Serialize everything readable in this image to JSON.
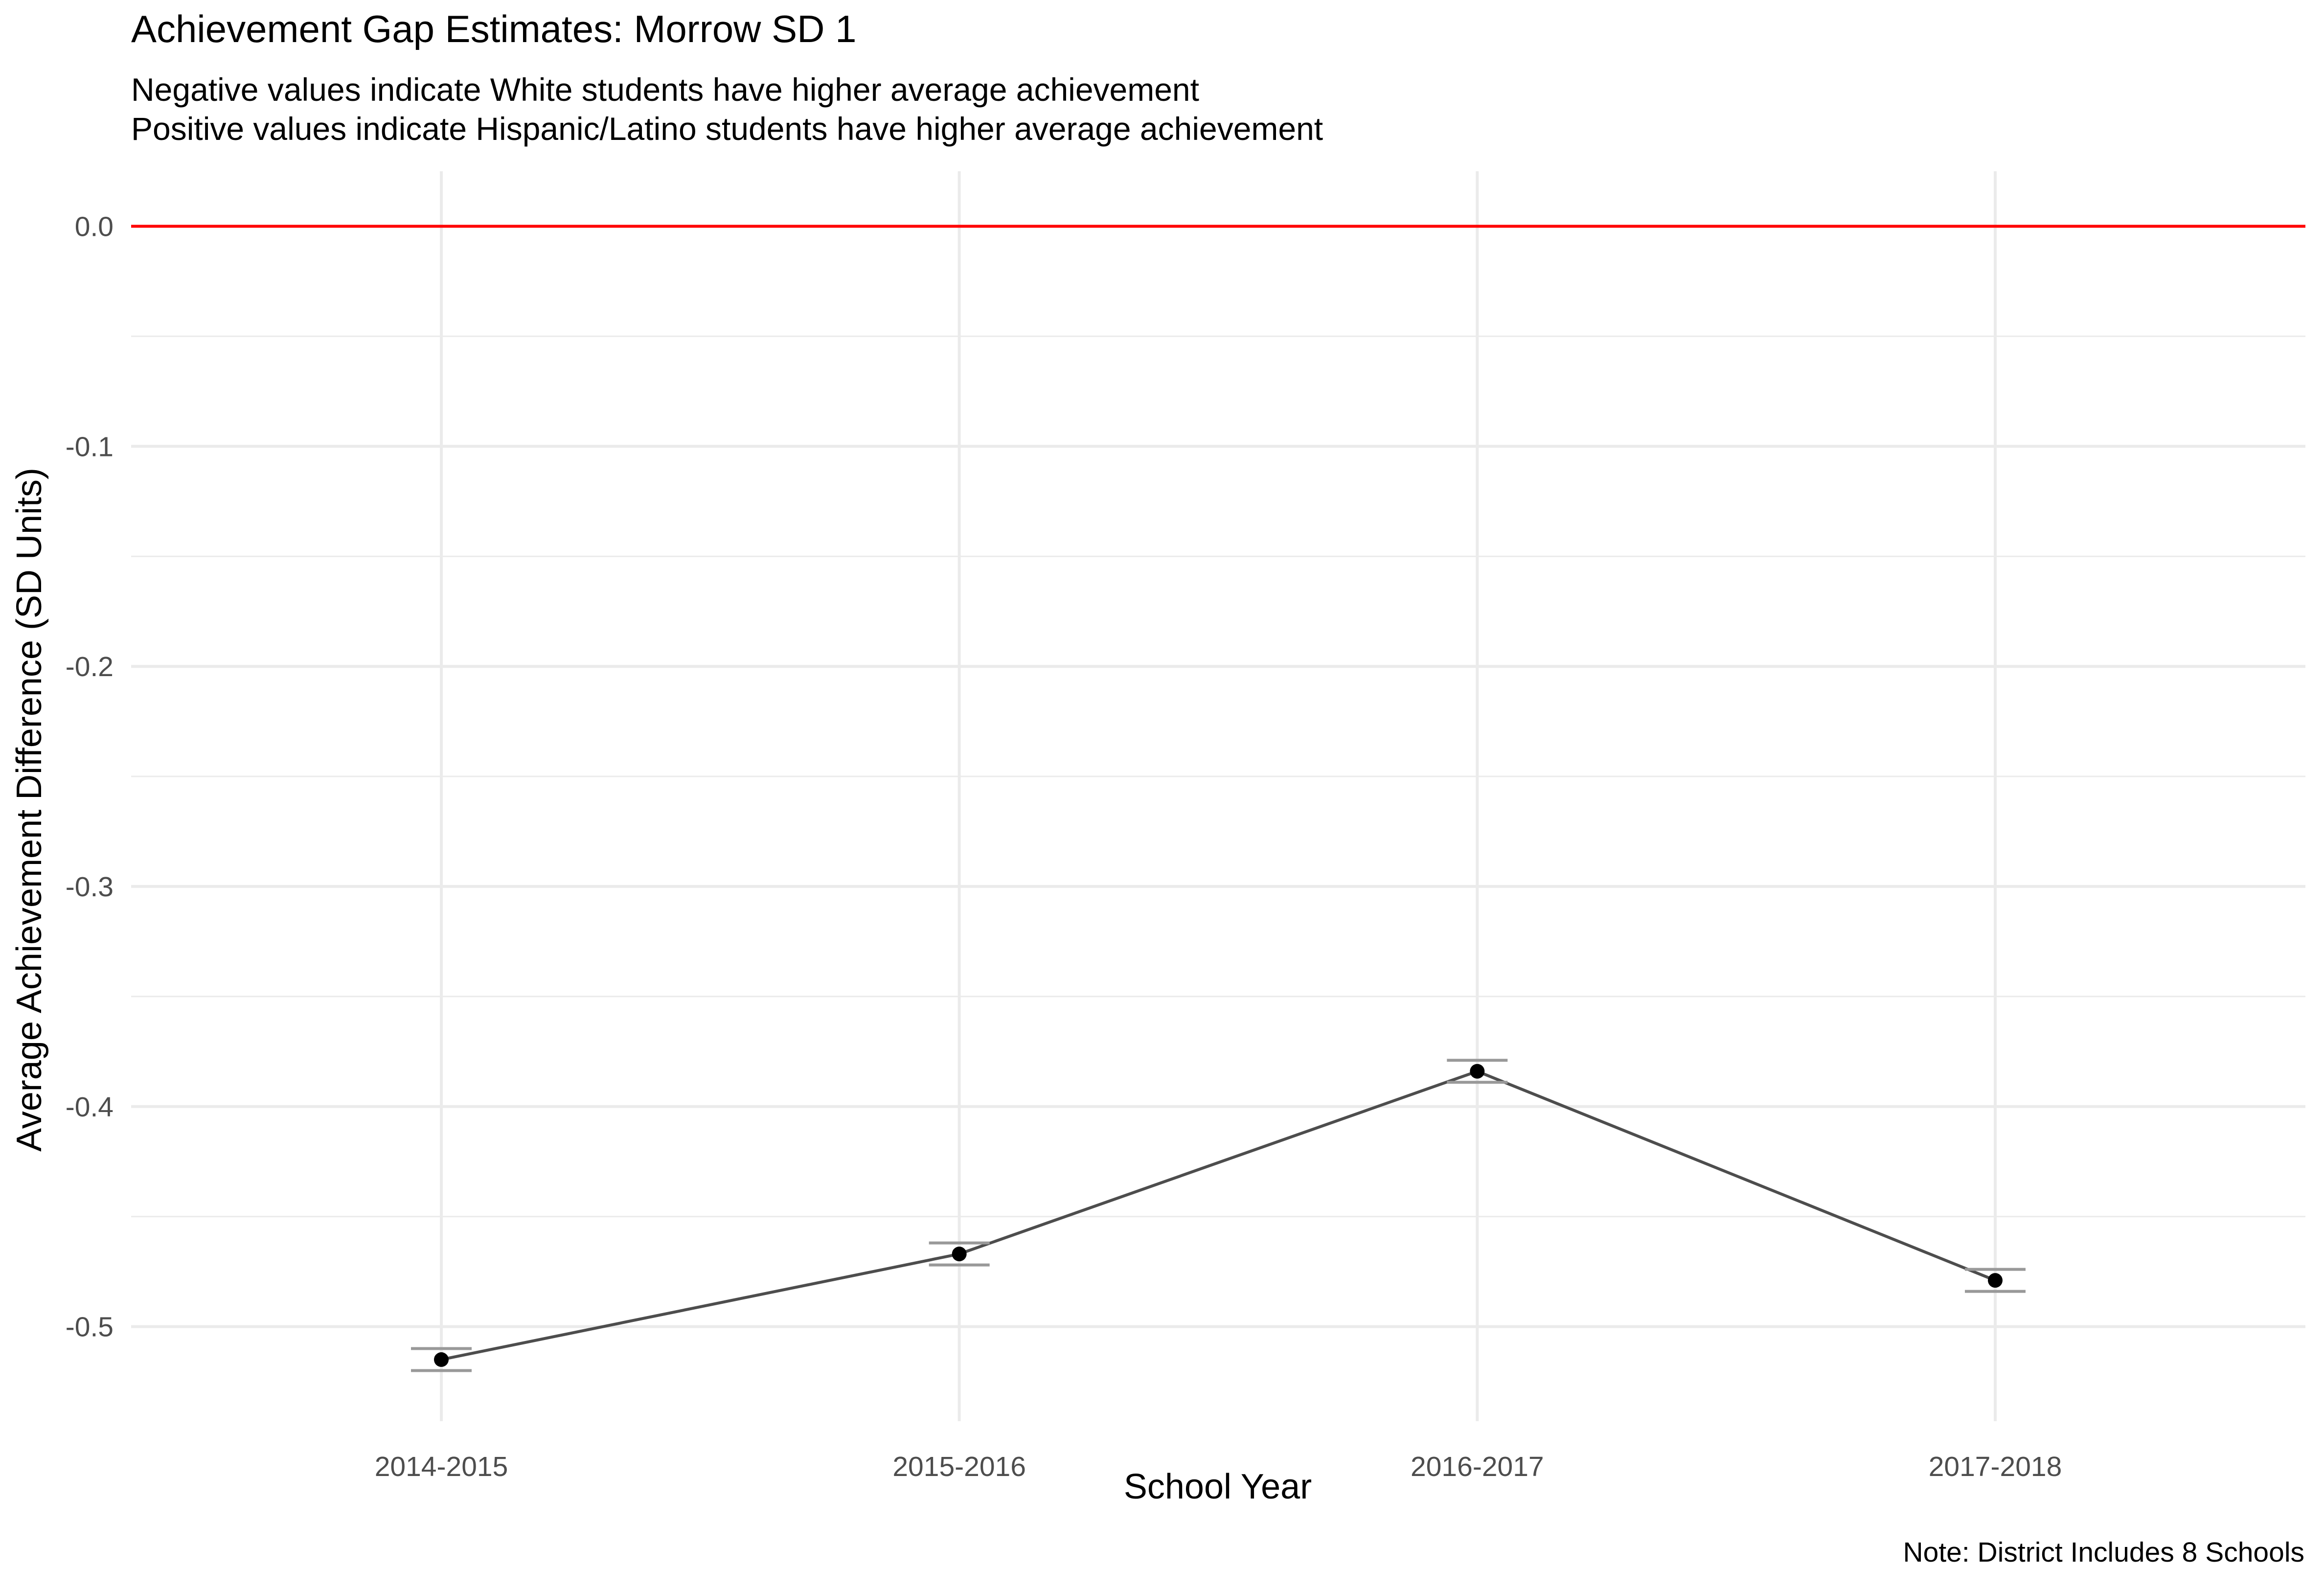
{
  "chart_data": {
    "type": "line",
    "title": "Achievement Gap Estimates: Morrow SD 1",
    "subtitle_lines": [
      "Negative values indicate White students have higher average achievement",
      "Positive values indicate Hispanic/Latino students have higher average achievement"
    ],
    "xlabel": "School Year",
    "ylabel": "Average Achievement Difference (SD Units)",
    "caption": "Note: District Includes 8 Schools",
    "categories": [
      "2014-2015",
      "2015-2016",
      "2016-2017",
      "2017-2018"
    ],
    "series": [
      {
        "values": [
          -0.515,
          -0.467,
          -0.384,
          -0.479
        ],
        "error_lower": [
          -0.52,
          -0.472,
          -0.389,
          -0.484
        ],
        "error_upper": [
          -0.51,
          -0.462,
          -0.379,
          -0.474
        ]
      }
    ],
    "yticks": [
      0.0,
      -0.1,
      -0.2,
      -0.3,
      -0.4,
      -0.5
    ],
    "ytick_labels": [
      "0.0",
      "-0.1",
      "-0.2",
      "-0.3",
      "-0.4",
      "-0.5"
    ],
    "ylim": [
      -0.543,
      0.025
    ],
    "reference_line": {
      "y": 0.0,
      "color": "#ff0000"
    },
    "grid": true,
    "colors": {
      "line": "#4d4d4d",
      "point": "#000000",
      "errorbar": "#999999",
      "grid": "#ebebeb"
    }
  }
}
